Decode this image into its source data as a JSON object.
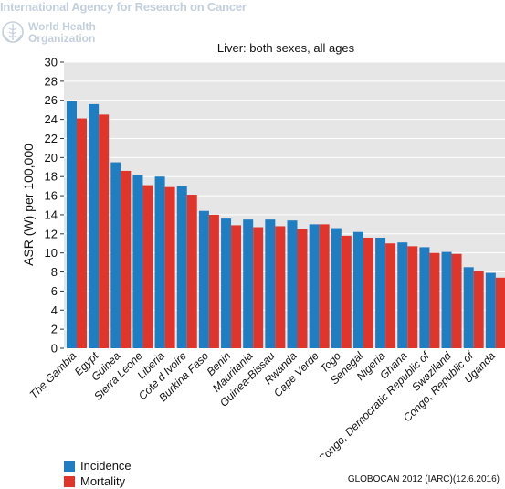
{
  "header": {
    "agency_name": "International Agency for Research on Cancer",
    "who_name_line1": "World Health",
    "who_name_line2": "Organization",
    "logo_icon": "who-emblem-icon"
  },
  "source": "GLOBOCAN 2012 (IARC)(12.6.2016)",
  "colors": {
    "incidence": "#1f7dc1",
    "mortality": "#e0352b",
    "plot_background": "#e6e6e6",
    "gridline": "#ffffff",
    "header_text": "#c4cfdd"
  },
  "chart_data": {
    "type": "bar",
    "title": "Liver: both sexes, all ages",
    "xlabel": "",
    "ylabel": "ASR (W) per 100,000",
    "ylim": [
      0,
      30
    ],
    "yticks": [
      0,
      2,
      4,
      6,
      8,
      10,
      12,
      14,
      16,
      18,
      20,
      22,
      24,
      26,
      28,
      30
    ],
    "grid": true,
    "legend_position": "bottom-left",
    "categories": [
      "The Gambia",
      "Egypt",
      "Guinea",
      "Sierra Leone",
      "Liberia",
      "Cote d Ivoire",
      "Burkina Faso",
      "Benin",
      "Mauritania",
      "Guinea-Bissau",
      "Rwanda",
      "Cape Verde",
      "Togo",
      "Senegal",
      "Nigeria",
      "Ghana",
      "Congo, Democratic Republic of",
      "Swaziland",
      "Congo, Republic of",
      "Uganda"
    ],
    "series": [
      {
        "name": "Incidence",
        "values": [
          25.9,
          25.6,
          19.5,
          18.2,
          18.0,
          17.0,
          14.4,
          13.6,
          13.5,
          13.5,
          13.4,
          13.0,
          12.6,
          12.2,
          11.6,
          11.1,
          10.6,
          10.1,
          8.5,
          7.9
        ]
      },
      {
        "name": "Mortality",
        "values": [
          24.1,
          24.5,
          18.6,
          17.1,
          16.9,
          16.1,
          14.0,
          12.9,
          12.7,
          12.8,
          12.5,
          13.0,
          11.8,
          11.6,
          11.0,
          10.7,
          10.0,
          9.9,
          8.1,
          7.4
        ]
      }
    ]
  }
}
